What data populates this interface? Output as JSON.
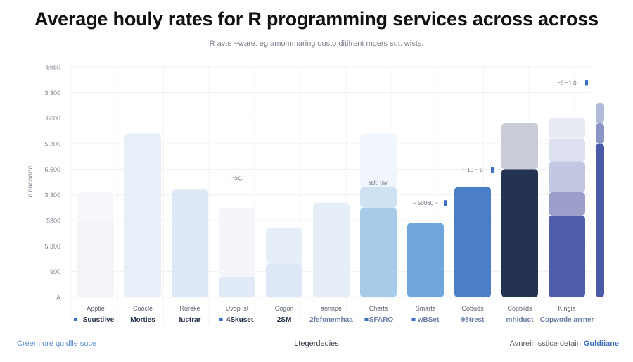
{
  "header": {
    "title": "Average houly rates for R programming services across across",
    "subtitle": "R avte ~ware. eg\tamommaring ousto ditifrent mpers sut. wists."
  },
  "chart_data": {
    "type": "bar",
    "ylabel": "c cacaooc",
    "y_ticks": [
      "A",
      "900",
      "5,300",
      "5300",
      "3,300",
      "5,500",
      "5,300",
      "6600",
      "3,300",
      "5650"
    ],
    "ylim": [
      0,
      9
    ],
    "grid": true,
    "legend": "none",
    "categories": [
      "Apptie",
      "Coocle",
      "Rureke",
      "Uvop ist",
      "Cogon",
      "annnpe",
      "Cherts",
      "Smarts",
      "Cobuds",
      "Copbilds",
      "Kingia"
    ],
    "legend_labels": [
      {
        "marker": true,
        "text": "Suustiive"
      },
      {
        "marker": false,
        "text": "Morties"
      },
      {
        "marker": false,
        "text": "Iuctrar"
      },
      {
        "marker": true,
        "text": "4Skuset"
      },
      {
        "marker": false,
        "text": "2SM"
      },
      {
        "marker": false,
        "text": "2fefonemhaa"
      },
      {
        "marker": true,
        "text": "SFARO"
      },
      {
        "marker": true,
        "text": "wBSet"
      },
      {
        "marker": false,
        "text": "95trest"
      },
      {
        "marker": false,
        "text": "mhiduct"
      },
      {
        "marker": false,
        "text": "Copwode arrner"
      }
    ],
    "bars": [
      {
        "category": "Apptie",
        "segments": [
          {
            "value": 3.0,
            "color": "#f2f4f8"
          },
          {
            "value": 1.1,
            "color": "#f7f8fb"
          }
        ]
      },
      {
        "category": "Coocle",
        "segments": [
          {
            "value": 6.4,
            "color": "#e9eff8"
          }
        ]
      },
      {
        "category": "Rureke",
        "segments": [
          {
            "value": 4.2,
            "color": "#dde8f6"
          }
        ]
      },
      {
        "category": "Uvop ist",
        "segments": [
          {
            "value": 0.8,
            "color": "#e1ebf8"
          },
          {
            "value": 2.7,
            "color": "#f3f5f9"
          }
        ]
      },
      {
        "category": "Cogon",
        "segments": [
          {
            "value": 1.3,
            "color": "#dce8f6"
          },
          {
            "value": 1.4,
            "color": "#e6eef8"
          }
        ]
      },
      {
        "category": "annnpe",
        "segments": [
          {
            "value": 3.7,
            "color": "#e6eef8"
          }
        ]
      },
      {
        "category": "Cherts",
        "segments": [
          {
            "value": 3.5,
            "color": "#a9cbea"
          },
          {
            "value": 0.8,
            "color": "#cfe2f4"
          },
          {
            "value": 2.1,
            "color": "#f1f6fc"
          }
        ]
      },
      {
        "category": "Smarts",
        "segments": [
          {
            "value": 2.9,
            "color": "#6fa6dc"
          }
        ]
      },
      {
        "category": "Cobuds",
        "segments": [
          {
            "value": 4.3,
            "color": "#4a7ec7"
          }
        ]
      },
      {
        "category": "Copbilds",
        "segments": [
          {
            "value": 5.0,
            "color": "#243450"
          },
          {
            "value": 1.8,
            "color": "#c9cbd7"
          }
        ]
      },
      {
        "category": "Kingia",
        "segments": [
          {
            "value": 3.2,
            "color": "#4f5ea8"
          },
          {
            "value": 0.9,
            "color": "#9c9fc9"
          },
          {
            "value": 1.2,
            "color": "#c4c7e2"
          },
          {
            "value": 0.9,
            "color": "#dde0ee"
          },
          {
            "value": 0.8,
            "color": "#e9ebf4"
          }
        ]
      },
      {
        "category": "",
        "segments": [
          {
            "value": 6.0,
            "color": "#4a58a8"
          },
          {
            "value": 0.8,
            "color": "#8a94c7"
          },
          {
            "value": 0.8,
            "color": "#b3bbdd"
          }
        ]
      }
    ],
    "annotations": [
      {
        "bar": 3,
        "value": 4.6,
        "text": "~sig.",
        "marker": false
      },
      {
        "bar": 6,
        "value": 4.4,
        "text": "salt. tny.",
        "marker": false
      },
      {
        "bar": 7,
        "value": 3.6,
        "text": "~ 50060 ~",
        "marker": true
      },
      {
        "bar": 8,
        "value": 4.9,
        "text": "~ 10 ~ 0",
        "marker": true
      },
      {
        "bar": 10,
        "value": 8.3,
        "text": "~0 ~1.0",
        "marker": true
      }
    ]
  },
  "footer": {
    "left": "Creem ore quidlle suce",
    "center": "Ltegerdedies",
    "right": "Avnrein sstice detain",
    "brand": "Guldiiane"
  }
}
